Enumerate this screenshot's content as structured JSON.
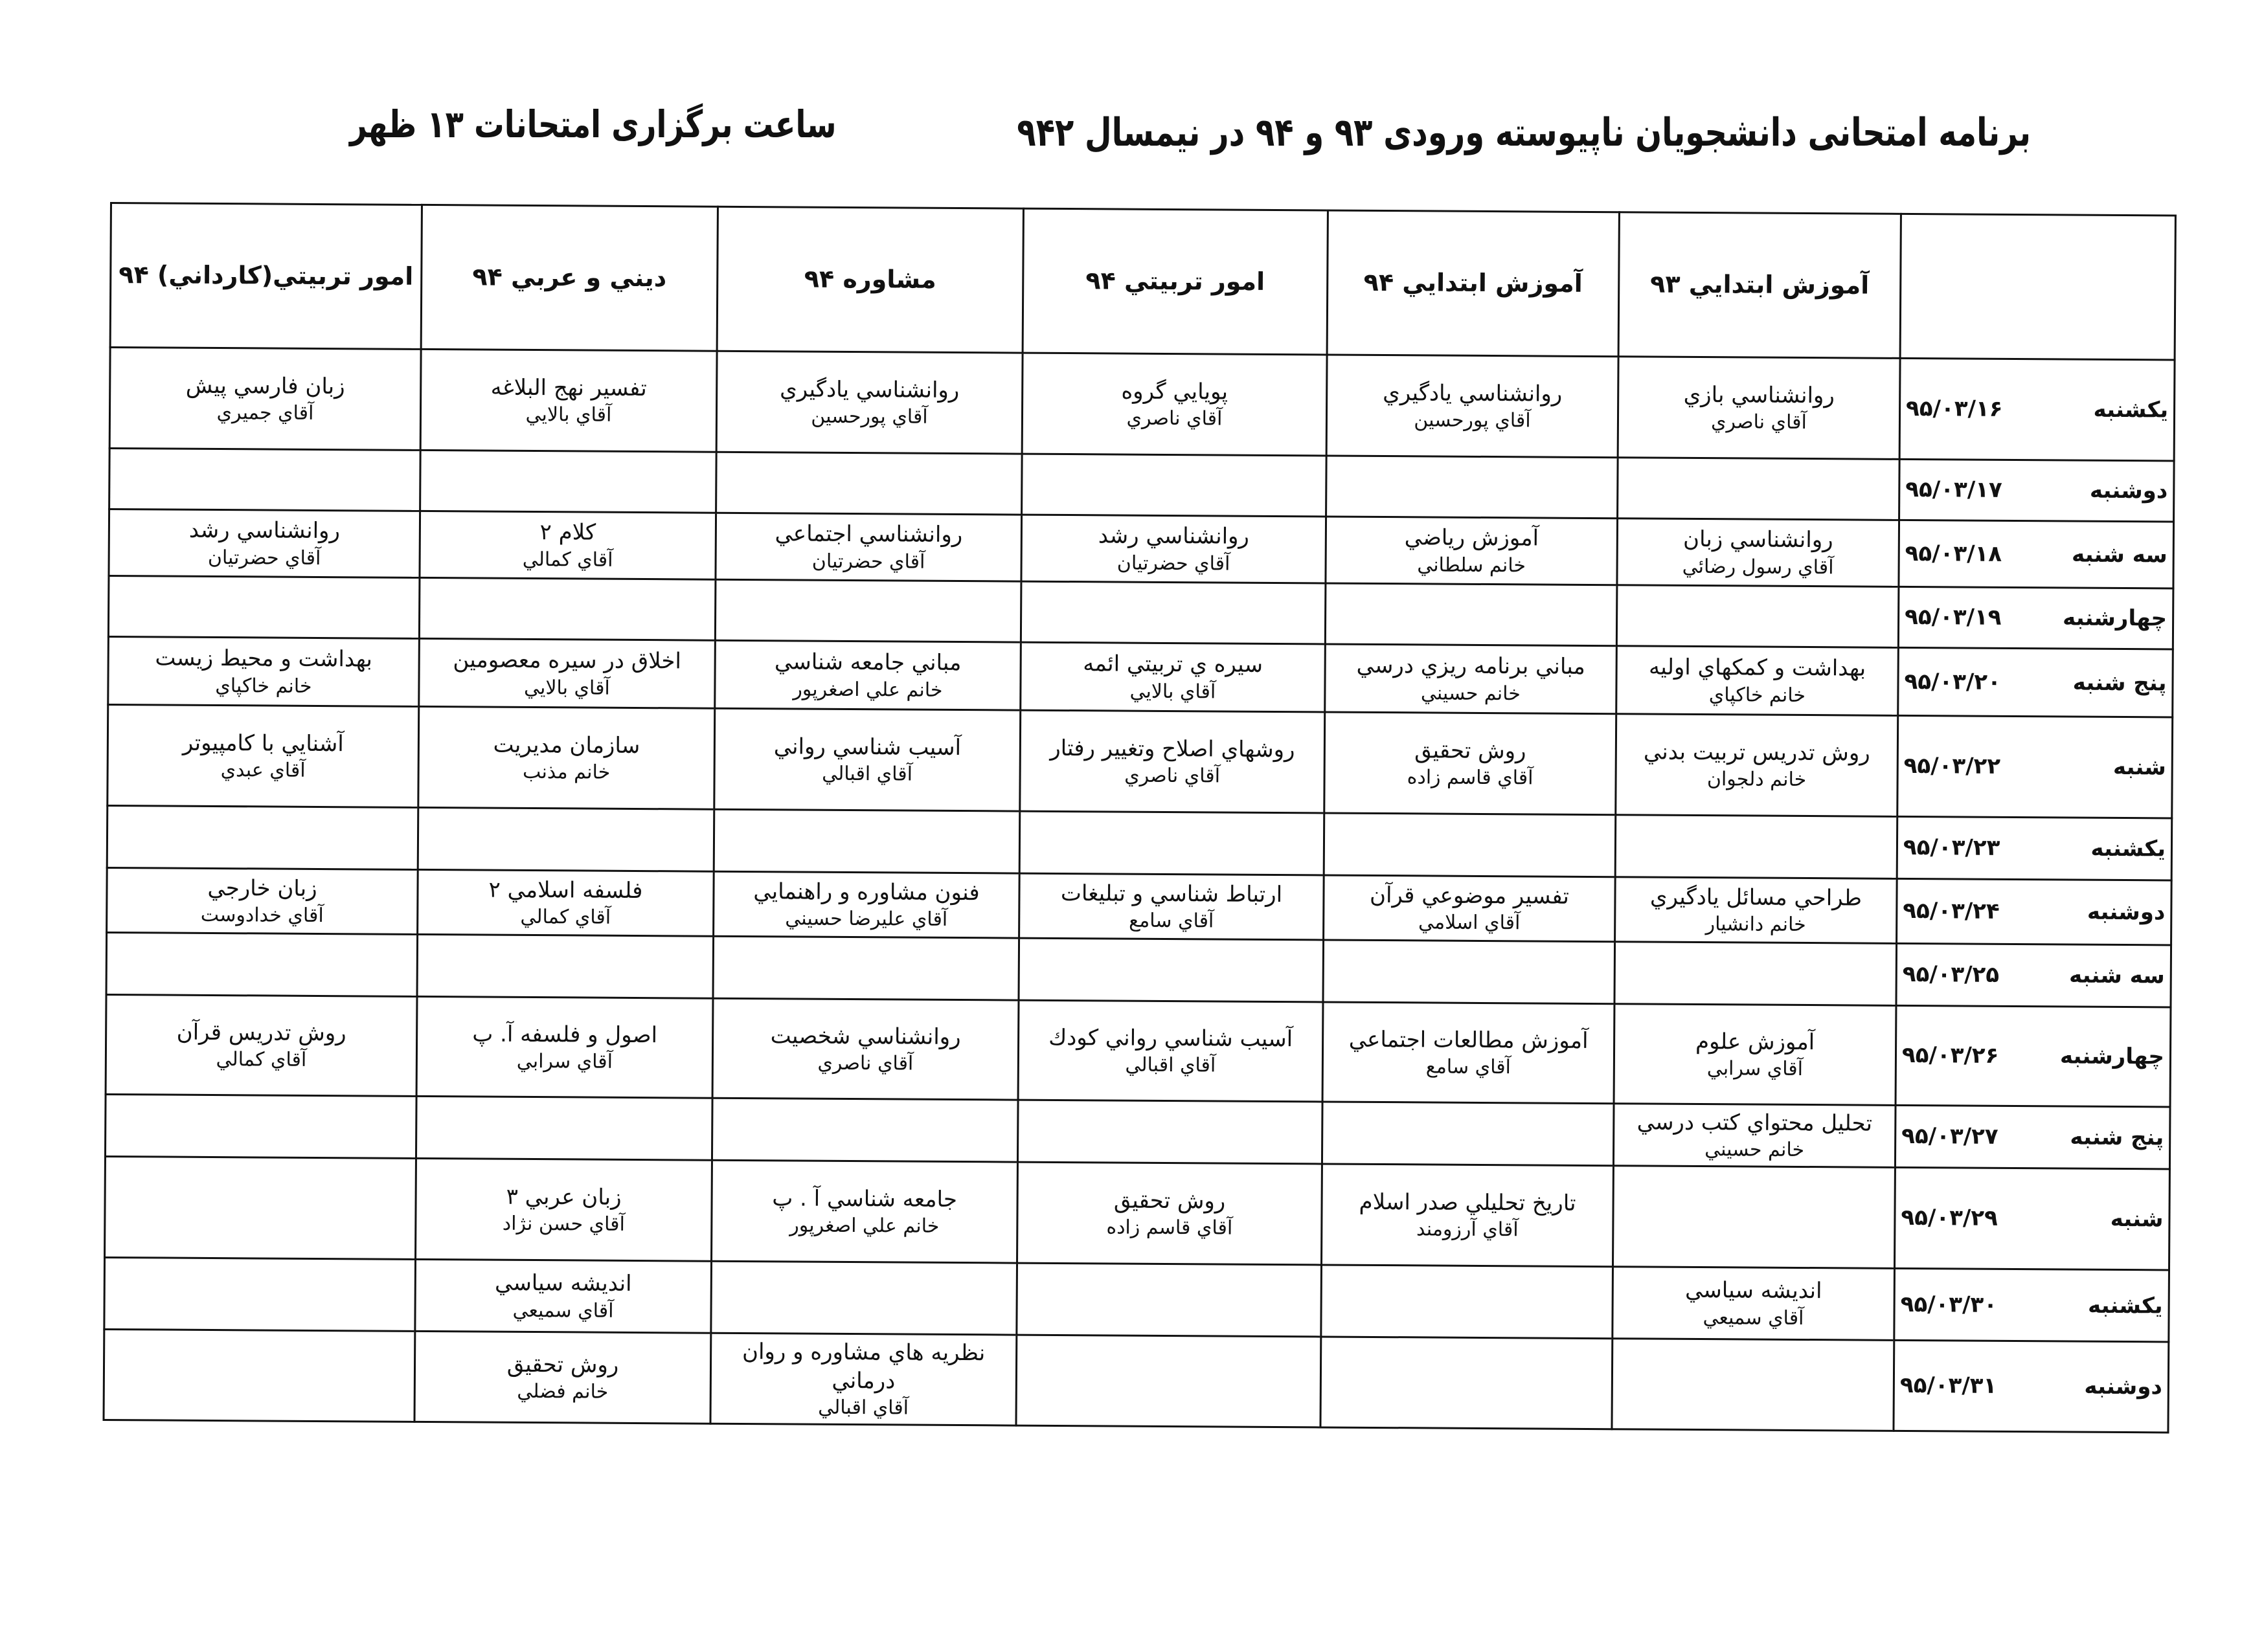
{
  "document": {
    "title": "برنامه امتحانی دانشجویان ناپیوسته ورودی ۹۳ و ۹۴ در نیمسال ۹۴۲",
    "exam_time": "ساعت برگزاری امتحانات ۱۳ ظهر"
  },
  "table": {
    "headers": [
      "",
      "آموزش ابتدايي ۹۳",
      "آموزش ابتدايي ۹۴",
      "امور تربيتي ۹۴",
      "مشاوره ۹۴",
      "ديني و عربي ۹۴",
      "امور تربيتي(كارداني) ۹۴"
    ],
    "rows": [
      {
        "day": "يكشنبه",
        "date": "۹۵/۰۳/۱۶",
        "cells": [
          [
            "روانشناسي بازي",
            "آقاي ناصري"
          ],
          [
            "روانشناسي يادگيري",
            "آقاي پورحسين"
          ],
          [
            "پويايي گروه",
            "آقاي ناصري"
          ],
          [
            "روانشناسي يادگيري",
            "آقاي پورحسين"
          ],
          [
            "تفسير نهج البلاغه",
            "آقاي بالايي"
          ],
          [
            "زبان فارسي پيش",
            "آقاي جميري"
          ]
        ]
      },
      {
        "day": "دوشنبه",
        "date": "۹۵/۰۳/۱۷",
        "cells": [
          [],
          [],
          [],
          [],
          [],
          []
        ]
      },
      {
        "day": "سه شنبه",
        "date": "۹۵/۰۳/۱۸",
        "cells": [
          [
            "روانشناسي زبان",
            "آقاي رسول رضائي"
          ],
          [
            "آموزش رياضي",
            "خانم سلطاني"
          ],
          [
            "روانشناسي رشد",
            "آقاي حضرتيان"
          ],
          [
            "روانشناسي اجتماعي",
            "آقاي حضرتيان"
          ],
          [
            "كلام ۲",
            "آقاي كمالي"
          ],
          [
            "روانشناسي رشد",
            "آقاي حضرتيان"
          ]
        ]
      },
      {
        "day": "چهارشنبه",
        "date": "۹۵/۰۳/۱۹",
        "cells": [
          [],
          [],
          [],
          [],
          [],
          []
        ]
      },
      {
        "day": "پنج شنبه",
        "date": "۹۵/۰۳/۲۰",
        "cells": [
          [
            "بهداشت و كمكهاي اوليه",
            "خانم خاكپاي"
          ],
          [
            "مباني برنامه ريزي درسي",
            "خانم حسيني"
          ],
          [
            "سيره ي تربيتي ائمه",
            "آقاي بالايي"
          ],
          [
            "مباني جامعه شناسي",
            "خانم علي اصغرپور"
          ],
          [
            "اخلاق در سيره معصومين",
            "آقاي بالايي"
          ],
          [
            "بهداشت و محيط زيست",
            "خانم خاكپاي"
          ]
        ]
      },
      {
        "day": "شنبه",
        "date": "۹۵/۰۳/۲۲",
        "cells": [
          [
            "روش تدريس تربيت بدني",
            "خانم دلجوان"
          ],
          [
            "روش تحقيق",
            "آقاي قاسم زاده"
          ],
          [
            "روشهاي اصلاح وتغيير رفتار",
            "آقاي ناصري"
          ],
          [
            "آسيب شناسي رواني",
            "آقاي اقبالي"
          ],
          [
            "سازمان مديريت",
            "خانم مذنب"
          ],
          [
            "آشنايي با كامپيوتر",
            "آقاي عبدي"
          ]
        ]
      },
      {
        "day": "يكشنبه",
        "date": "۹۵/۰۳/۲۳",
        "cells": [
          [],
          [],
          [],
          [],
          [],
          []
        ]
      },
      {
        "day": "دوشنبه",
        "date": "۹۵/۰۳/۲۴",
        "cells": [
          [
            "طراحي مسائل يادگيري",
            "خانم دانشيار"
          ],
          [
            "تفسير موضوعي قرآن",
            "آقاي اسلامي"
          ],
          [
            "ارتباط شناسي و تبليغات",
            "آقاي سامع"
          ],
          [
            "فنون مشاوره و راهنمايي",
            "آقاي عليرضا حسيني"
          ],
          [
            "فلسفه اسلامي ۲",
            "آقاي كمالي"
          ],
          [
            "زبان خارجي",
            "آقاي خدادوست"
          ]
        ]
      },
      {
        "day": "سه شنبه",
        "date": "۹۵/۰۳/۲۵",
        "cells": [
          [],
          [],
          [],
          [],
          [],
          []
        ]
      },
      {
        "day": "چهارشنبه",
        "date": "۹۵/۰۳/۲۶",
        "cells": [
          [
            "آموزش علوم",
            "آقاي سرابي"
          ],
          [
            "آموزش مطالعات اجتماعي",
            "آقاي سامع"
          ],
          [
            "آسيب شناسي رواني كودك",
            "آقاي اقبالي"
          ],
          [
            "روانشناسي شخصيت",
            "آقاي ناصري"
          ],
          [
            "اصول و فلسفه آ. پ",
            "آقاي سرابي"
          ],
          [
            "روش تدريس قرآن",
            "آقاي كمالي"
          ]
        ]
      },
      {
        "day": "پنج شنبه",
        "date": "۹۵/۰۳/۲۷",
        "cells": [
          [
            "تحليل محتواي كتب درسي",
            "خانم حسيني"
          ],
          [],
          [],
          [],
          [],
          []
        ]
      },
      {
        "day": "شنبه",
        "date": "۹۵/۰۳/۲۹",
        "cells": [
          [],
          [
            "تاريخ تحليلي صدر اسلام",
            "آقاي آرزومند"
          ],
          [
            "روش تحقيق",
            "آقاي قاسم زاده"
          ],
          [
            "جامعه شناسي آ . پ",
            "خانم علي اصغرپور"
          ],
          [
            "زبان عربي ۳",
            "آقاي حسن نژاد"
          ],
          []
        ]
      },
      {
        "day": "يكشنبه",
        "date": "۹۵/۰۳/۳۰",
        "cells": [
          [
            "انديشه سياسي",
            "آقاي سميعي"
          ],
          [],
          [],
          [],
          [
            "انديشه سياسي",
            "آقاي سميعي"
          ],
          []
        ]
      },
      {
        "day": "دوشنبه",
        "date": "۹۵/۰۳/۳۱",
        "cells": [
          [],
          [],
          [],
          [
            "نظريه هاي مشاوره و روان درماني",
            "آقاي اقبالي"
          ],
          [
            "روش تحقيق",
            "خانم فضلي"
          ],
          []
        ]
      }
    ]
  }
}
